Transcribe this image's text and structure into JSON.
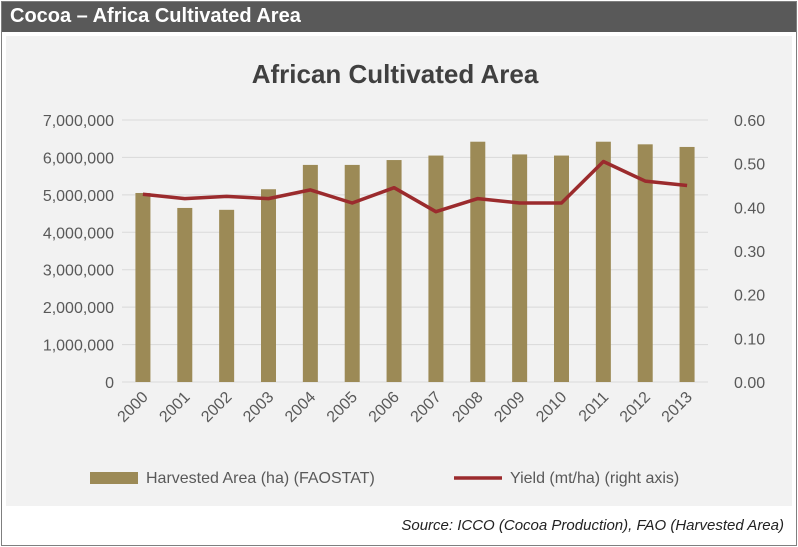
{
  "header": {
    "title": "Cocoa – Africa Cultivated Area"
  },
  "footer": {
    "source": "Source: ICCO (Cocoa Production), FAO (Harvested Area)"
  },
  "colors": {
    "bar": "#9c8a56",
    "line": "#9b2b2d",
    "header_bg": "#595959",
    "panel_bg": "#f2f2f2"
  },
  "chart_data": {
    "type": "bar",
    "title": "African Cultivated Area",
    "categories": [
      "2000",
      "2001",
      "2002",
      "2003",
      "2004",
      "2005",
      "2006",
      "2007",
      "2008",
      "2009",
      "2010",
      "2011",
      "2012",
      "2013"
    ],
    "series": [
      {
        "name": "Harvested Area (ha) (FAOSTAT)",
        "type": "bar",
        "axis": "left",
        "values": [
          5050000,
          4650000,
          4600000,
          5150000,
          5800000,
          5800000,
          5930000,
          6050000,
          6420000,
          6080000,
          6050000,
          6420000,
          6350000,
          6280000
        ]
      },
      {
        "name": "Yield (mt/ha) (right axis)",
        "type": "line",
        "axis": "right",
        "values": [
          0.43,
          0.42,
          0.425,
          0.42,
          0.44,
          0.41,
          0.445,
          0.39,
          0.42,
          0.41,
          0.41,
          0.505,
          0.46,
          0.45
        ]
      }
    ],
    "left_axis": {
      "ylim": [
        0,
        7000000
      ],
      "ticks": [
        "0",
        "1,000,000",
        "2,000,000",
        "3,000,000",
        "4,000,000",
        "5,000,000",
        "6,000,000",
        "7,000,000"
      ]
    },
    "right_axis": {
      "ylim": [
        0,
        0.6
      ],
      "ticks": [
        "0.00",
        "0.10",
        "0.20",
        "0.30",
        "0.40",
        "0.50",
        "0.60"
      ]
    },
    "grid": true,
    "legend": "bottom"
  }
}
